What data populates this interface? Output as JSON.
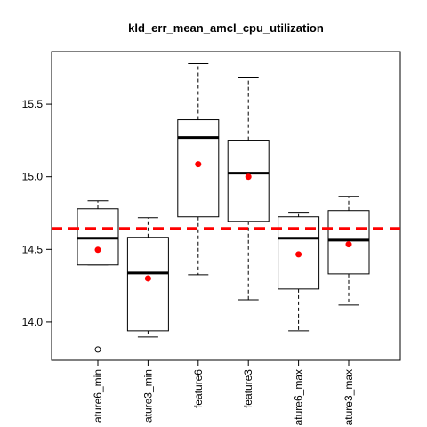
{
  "chart_data": {
    "type": "boxplot",
    "title": "kld_err_mean_amcl_cpu_utilization",
    "categories": [
      "ature6_min",
      "ature3_min",
      "feature6",
      "feature3",
      "ature6_max",
      "ature3_max"
    ],
    "whisker_low": [
      14.393,
      13.896,
      14.325,
      14.153,
      13.939,
      14.117
    ],
    "q1": [
      14.393,
      13.939,
      14.724,
      14.693,
      14.227,
      14.331
    ],
    "median": [
      14.577,
      14.337,
      15.27,
      15.025,
      14.577,
      14.564
    ],
    "q3": [
      14.779,
      14.583,
      15.393,
      15.252,
      14.724,
      14.767
    ],
    "whisker_high": [
      14.834,
      14.718,
      15.779,
      15.681,
      14.755,
      14.865
    ],
    "means": [
      14.497,
      14.3,
      15.086,
      15.0,
      14.466,
      14.535
    ],
    "outliers": [
      [
        13.81
      ],
      [],
      [],
      [],
      [],
      []
    ],
    "mean_color": "#ff0000",
    "reference_line": 14.644,
    "reference_color": "#ff0000",
    "ylim": [
      13.736,
      15.862
    ],
    "yticks": [
      {
        "value": 14,
        "label": "14.0"
      },
      14.5,
      {
        "value": 15,
        "label": "15.0"
      },
      15.5
    ]
  }
}
